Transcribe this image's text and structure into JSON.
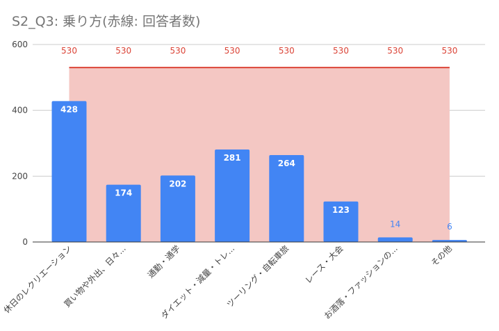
{
  "chart_data": {
    "type": "bar",
    "title": "S2_Q3: 乗り方(赤線: 回答者数)",
    "categories": [
      "休日のレクリエーション",
      "買い物や外出、日々...",
      "通勤・通学",
      "ダイエット・減量・トレ...",
      "ツーリング・自転車旅",
      "レース・大会",
      "お酒落・ファッションの...",
      "その他"
    ],
    "series": [
      {
        "values": [
          428,
          174,
          202,
          281,
          264,
          123,
          14,
          6
        ],
        "color": "#4285f4"
      },
      {
        "values": [
          530,
          530,
          530,
          530,
          530,
          530,
          530,
          530
        ],
        "color": "#db4437",
        "type": "area-line"
      }
    ],
    "ylim": [
      0,
      600
    ],
    "yticks": [
      0,
      200,
      400,
      600
    ],
    "grid": true,
    "legend": "none",
    "colors": {
      "bar": "#4285f4",
      "area_fill": "#f4c7c3",
      "area_line": "#db4437",
      "label_inside": "#ffffff",
      "label_outside": "#4285f4",
      "grid": "#cccccc",
      "axis_text": "#444444",
      "title": "#757575"
    }
  }
}
